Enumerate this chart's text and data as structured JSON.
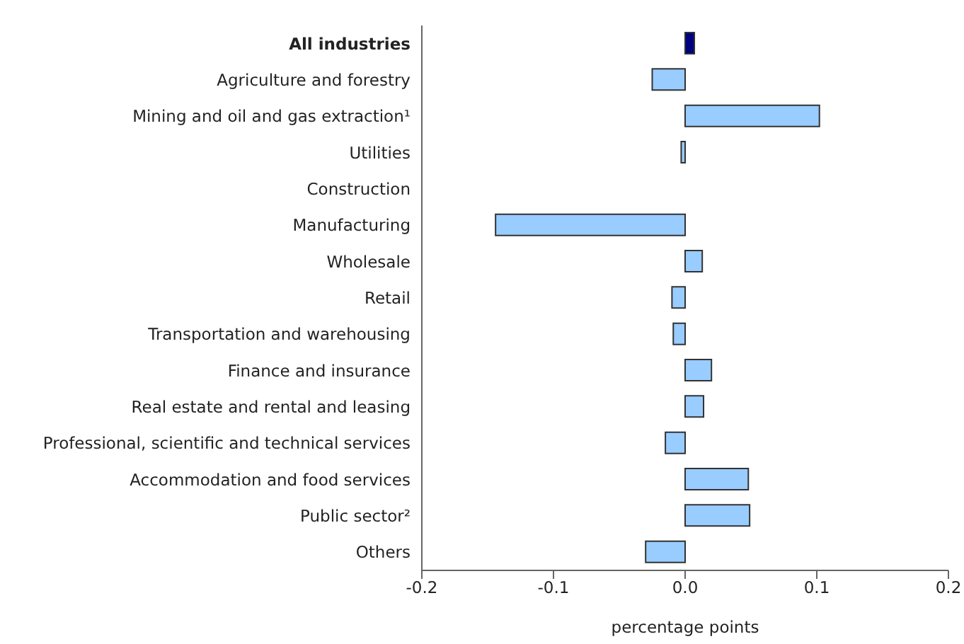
{
  "chart_data": {
    "type": "bar",
    "orientation": "horizontal",
    "xlabel": "percentage points",
    "categories": [
      "All industries",
      "Agriculture and forestry",
      "Mining and oil and gas extraction¹",
      "Utilities",
      "Construction",
      "Manufacturing",
      "Wholesale",
      "Retail",
      "Transportation and warehousing",
      "Finance and insurance",
      "Real estate and rental and leasing",
      "Professional, scientific and technical services",
      "Accommodation and food services",
      "Public sector²",
      "Others"
    ],
    "values": [
      0.007,
      -0.025,
      0.102,
      -0.003,
      0,
      -0.144,
      0.013,
      -0.01,
      -0.009,
      0.02,
      0.014,
      -0.015,
      0.048,
      0.049,
      -0.03
    ],
    "colors": [
      "#000080",
      "#99ccff",
      "#99ccff",
      "#99ccff",
      "#99ccff",
      "#99ccff",
      "#99ccff",
      "#99ccff",
      "#99ccff",
      "#99ccff",
      "#99ccff",
      "#99ccff",
      "#99ccff",
      "#99ccff",
      "#99ccff"
    ],
    "xlim": [
      -0.2,
      0.2
    ],
    "xticks": [
      -0.2,
      -0.1,
      {
        "value": 0,
        "label": "0.0"
      },
      0.1,
      0.2
    ],
    "legend": false
  }
}
